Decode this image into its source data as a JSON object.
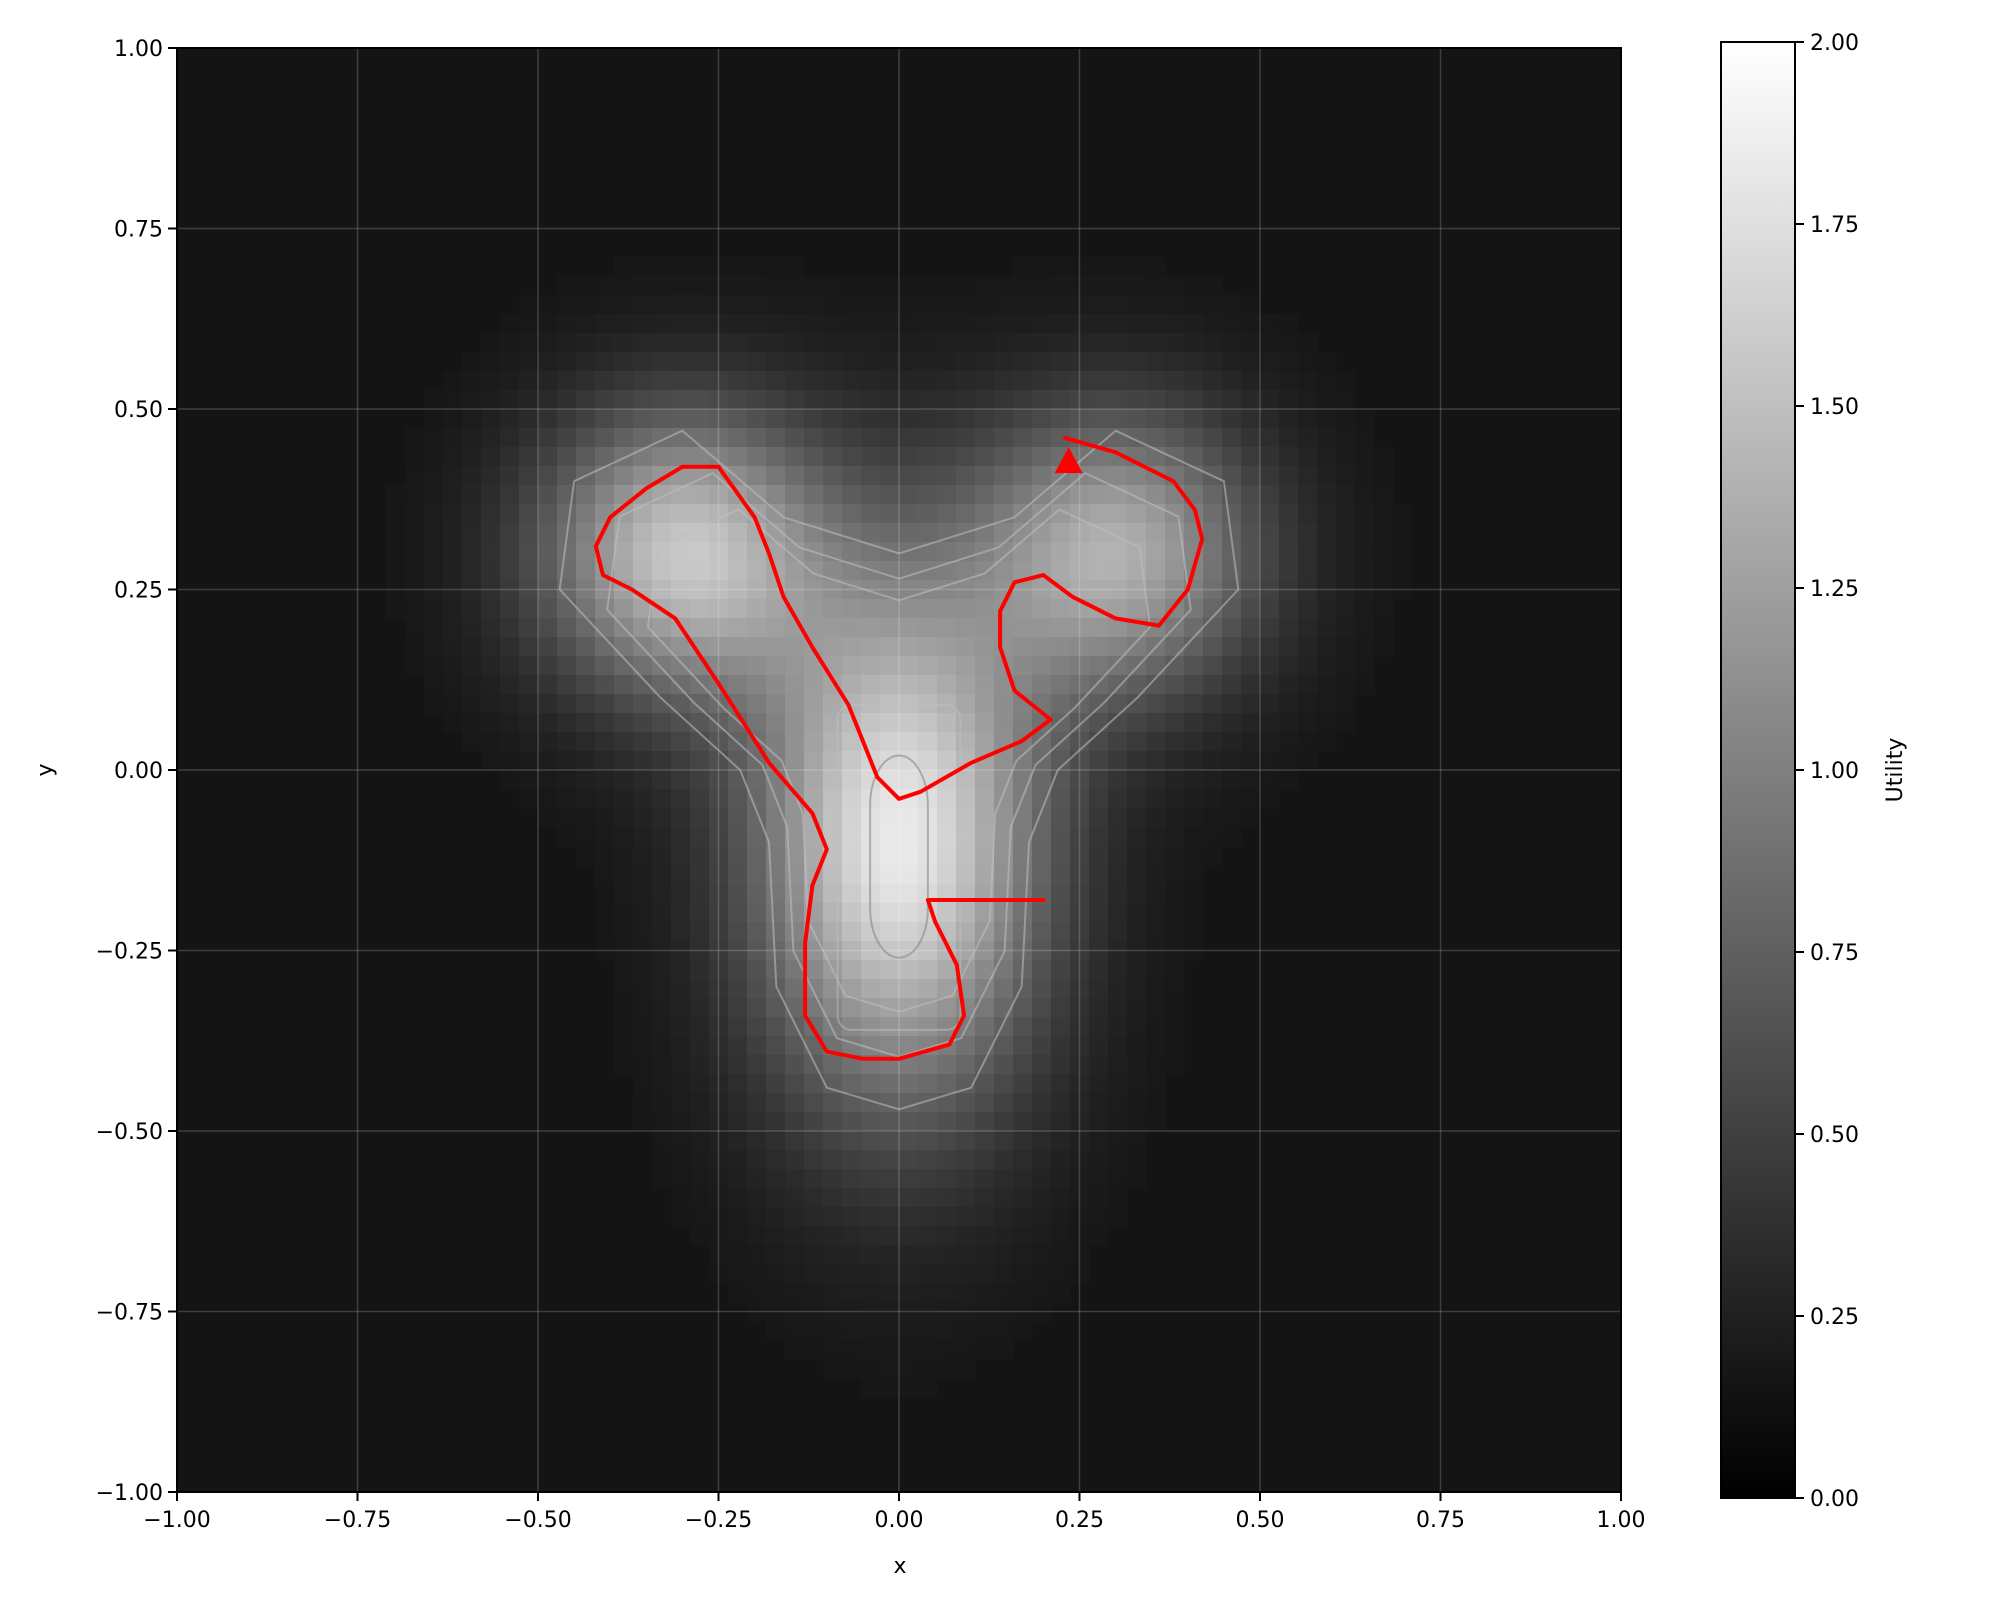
{
  "chart_data": {
    "type": "heatmap",
    "title": "",
    "xlabel": "x",
    "ylabel": "y",
    "xlim": [
      -1.0,
      1.0
    ],
    "ylim": [
      -1.0,
      1.0
    ],
    "x_ticks": [
      "−1.00",
      "−0.75",
      "−0.50",
      "−0.25",
      "0.00",
      "0.25",
      "0.50",
      "0.75",
      "1.00"
    ],
    "y_ticks": [
      "−1.00",
      "−0.75",
      "−0.50",
      "−0.25",
      "0.00",
      "0.25",
      "0.50",
      "0.75",
      "1.00"
    ],
    "x_tick_values": [
      -1.0,
      -0.75,
      -0.5,
      -0.25,
      0.0,
      0.25,
      0.5,
      0.75,
      1.0
    ],
    "y_tick_values": [
      -1.0,
      -0.75,
      -0.5,
      -0.25,
      0.0,
      0.25,
      0.5,
      0.75,
      1.0
    ],
    "grid": true,
    "colormap": "gray",
    "colorbar": {
      "label": "Utility",
      "range": [
        0.0,
        2.0
      ],
      "ticks": [
        "0.00",
        "0.25",
        "0.50",
        "0.75",
        "1.00",
        "1.25",
        "1.50",
        "1.75",
        "2.00"
      ],
      "tick_values": [
        0.0,
        0.25,
        0.5,
        0.75,
        1.0,
        1.25,
        1.5,
        1.75,
        2.0
      ]
    },
    "field": {
      "description_of_peaks": "three gaussian lobes",
      "peaks": [
        {
          "x": -0.3,
          "y": 0.3,
          "amplitude": 1.55
        },
        {
          "x": 0.3,
          "y": 0.3,
          "amplitude": 1.35
        },
        {
          "x": 0.0,
          "y": -0.1,
          "amplitude": 1.9
        }
      ]
    },
    "contour_color": "#bfbfbf",
    "series": [
      {
        "color": "#ff0000",
        "x": [
          0.2,
          0.1,
          0.04,
          0.05,
          0.08,
          0.09,
          0.07,
          0.0,
          -0.05,
          -0.1,
          -0.13,
          -0.13,
          -0.12,
          -0.1,
          -0.12,
          -0.18,
          -0.25,
          -0.31,
          -0.37,
          -0.41,
          -0.42,
          -0.4,
          -0.35,
          -0.3,
          -0.25,
          -0.2,
          -0.18,
          -0.17,
          -0.16,
          -0.12,
          -0.07,
          -0.03,
          0.0,
          0.03,
          0.1,
          0.17,
          0.21,
          0.16,
          0.14,
          0.14,
          0.16,
          0.2,
          0.24,
          0.3,
          0.36,
          0.4,
          0.42,
          0.41,
          0.38,
          0.3,
          0.23
        ],
        "y": [
          -0.18,
          -0.18,
          -0.18,
          -0.21,
          -0.27,
          -0.34,
          -0.38,
          -0.4,
          -0.4,
          -0.39,
          -0.34,
          -0.24,
          -0.16,
          -0.11,
          -0.06,
          0.01,
          0.12,
          0.21,
          0.25,
          0.27,
          0.31,
          0.35,
          0.39,
          0.42,
          0.42,
          0.35,
          0.3,
          0.27,
          0.24,
          0.17,
          0.09,
          -0.01,
          -0.04,
          -0.03,
          0.01,
          0.04,
          0.07,
          0.11,
          0.17,
          0.22,
          0.26,
          0.27,
          0.24,
          0.21,
          0.2,
          0.25,
          0.32,
          0.36,
          0.4,
          0.44,
          0.46
        ]
      }
    ],
    "marker": {
      "shape": "triangle",
      "x": 0.235,
      "y": 0.425,
      "color": "#ff0000"
    }
  }
}
